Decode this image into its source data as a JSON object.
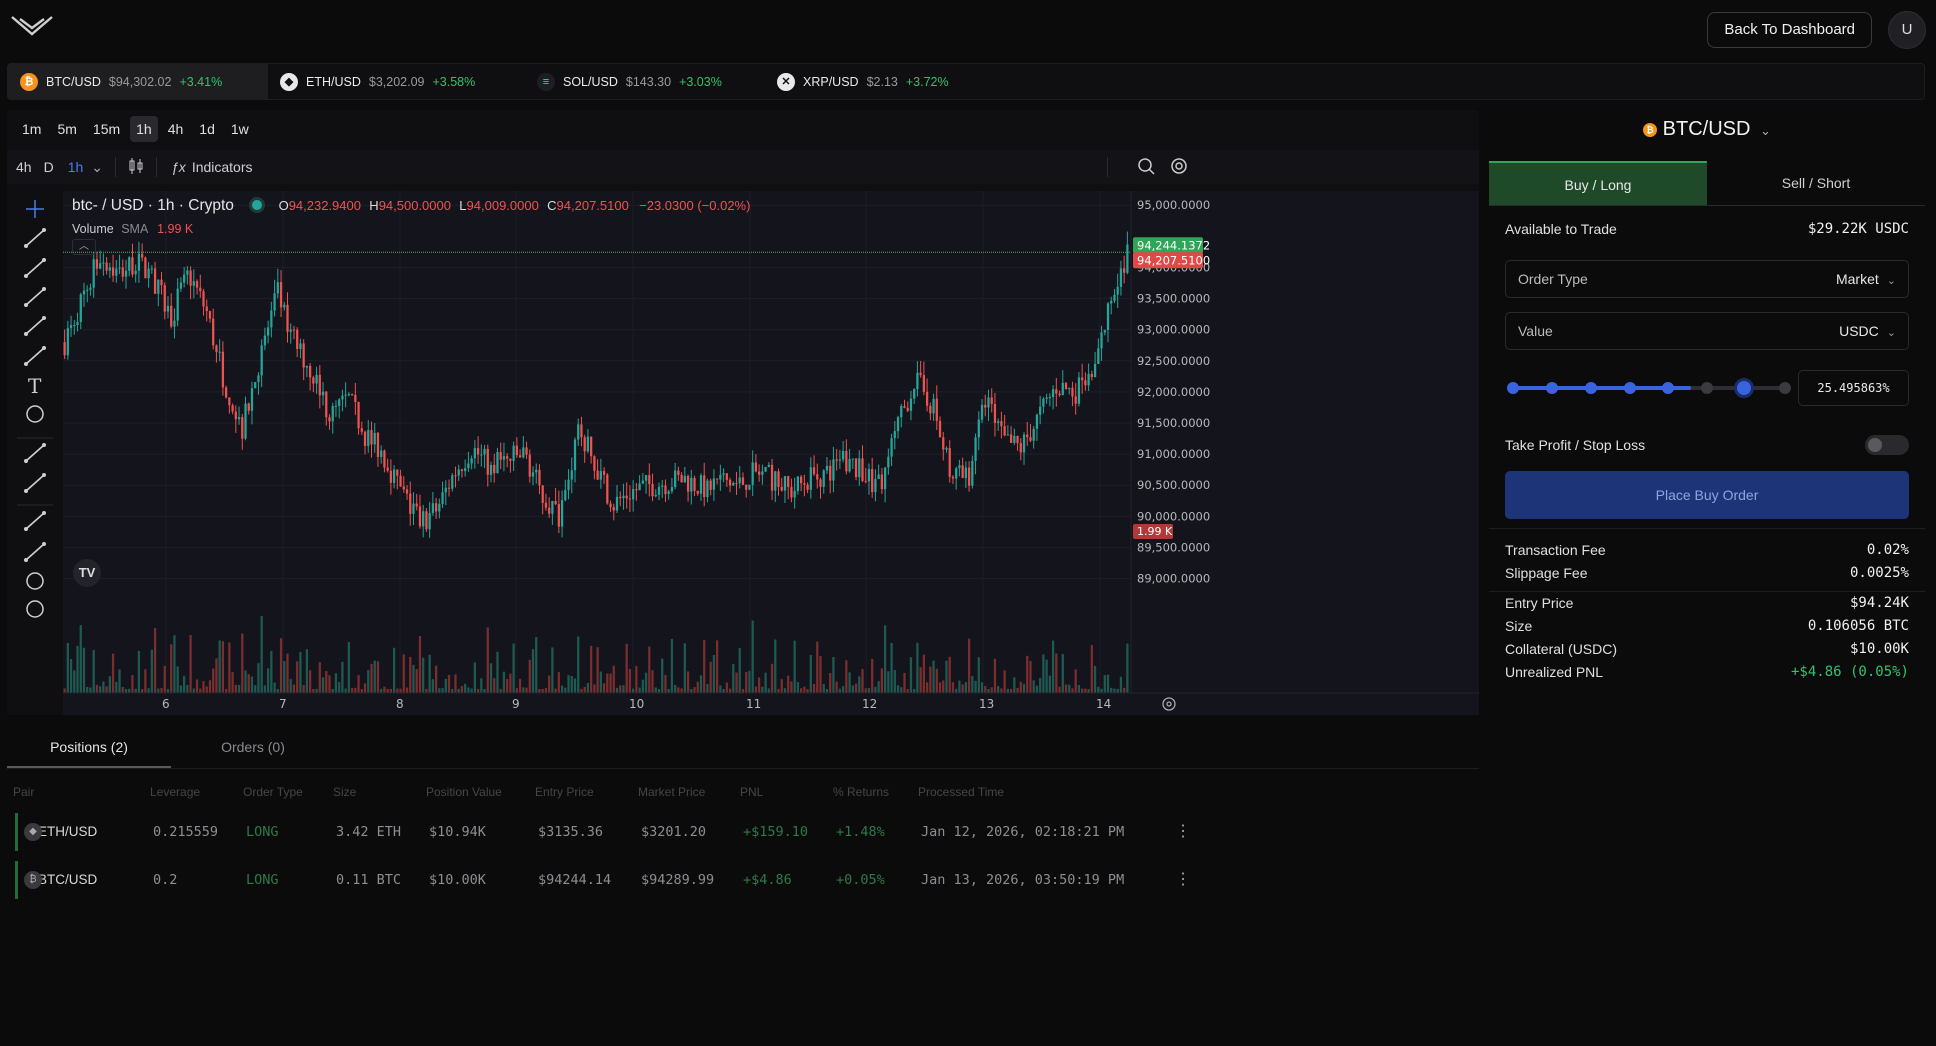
{
  "header": {
    "back_label": "Back To Dashboard",
    "avatar": "U"
  },
  "tickers": [
    {
      "symbol": "BTC/USD",
      "price": "$94,302.02",
      "change": "+3.41%",
      "icon": "bitcoin-icon",
      "color": "#f7931a",
      "glyph": "₿"
    },
    {
      "symbol": "ETH/USD",
      "price": "$3,202.09",
      "change": "+3.58%",
      "icon": "ethereum-icon",
      "color": "#ffffff",
      "glyph": "◆"
    },
    {
      "symbol": "SOL/USD",
      "price": "$143.30",
      "change": "+3.03%",
      "icon": "solana-icon",
      "color": "#14f195",
      "glyph": "≡"
    },
    {
      "symbol": "XRP/USD",
      "price": "$2.13",
      "change": "+3.72%",
      "icon": "xrp-icon",
      "color": "#ffffff",
      "glyph": "✕"
    }
  ],
  "timeframes": [
    "1m",
    "5m",
    "15m",
    "1h",
    "4h",
    "1d",
    "1w"
  ],
  "toolbar": {
    "quick_tf_1": "4h",
    "quick_tf_2": "D",
    "quick_tf_3": "1h",
    "indicators": "Indicators"
  },
  "legend": {
    "symbol": "btc- / USD · 1h · Crypto",
    "o_label": "O",
    "o": "94,232.9400",
    "h_label": "H",
    "h": "94,500.0000",
    "l_label": "L",
    "l": "94,009.0000",
    "c_label": "C",
    "c": "94,207.5100",
    "change": "−23.0300 (−0.02%)",
    "volume_label": "Volume",
    "sma_label": "SMA",
    "volume": "1.99 K"
  },
  "chart_data": {
    "type": "candlestick",
    "x_ticks": [
      "6",
      "7",
      "8",
      "9",
      "10",
      "11",
      "12",
      "13",
      "14"
    ],
    "y_ticks": [
      "95,000.0000",
      "94,000.0000",
      "93,500.0000",
      "93,000.0000",
      "92,500.0000",
      "92,000.0000",
      "91,500.0000",
      "91,000.0000",
      "90,500.0000",
      "90,000.0000",
      "89,500.0000",
      "89,000.0000"
    ],
    "ylim": [
      88800,
      95100
    ],
    "price_labels": {
      "last_green": "94,244.1372",
      "last_red": "94,207.5100",
      "volume": "1.99 K"
    },
    "close_path": [
      92800,
      93500,
      94200,
      93900,
      94100,
      93800,
      93200,
      93900,
      93300,
      92200,
      91400,
      92500,
      93600,
      92800,
      92300,
      91600,
      91900,
      91300,
      91000,
      90400,
      89900,
      90100,
      90700,
      91100,
      90800,
      90900,
      91000,
      90300,
      90000,
      91400,
      90800,
      90200,
      90400,
      90500,
      90550,
      90600,
      90450,
      90600,
      90500,
      90700,
      90600,
      90400,
      90600,
      90700,
      90900,
      90700,
      90500,
      91400,
      92200,
      91800,
      90700,
      90600,
      91900,
      91200,
      91100,
      91600,
      92100,
      92000,
      92200,
      93400,
      94244
    ]
  },
  "order": {
    "pair": "BTC/USD",
    "tab_buy": "Buy / Long",
    "tab_sell": "Sell / Short",
    "available_label": "Available to Trade",
    "available_value": "$29.22K USDC",
    "order_type_label": "Order Type",
    "order_type_value": "Market",
    "value_label": "Value",
    "value_unit": "USDC",
    "slider_pct": "25.495863%",
    "slider_fraction": 0.7,
    "tpsl_label": "Take Profit / Stop Loss",
    "place_label": "Place Buy Order",
    "fees": [
      {
        "label": "Transaction Fee",
        "value": "0.02%"
      },
      {
        "label": "Slippage Fee",
        "value": "0.0025%"
      }
    ],
    "summary": [
      {
        "label": "Entry Price",
        "value": "$94.24K"
      },
      {
        "label": "Size",
        "value": "0.106056 BTC"
      },
      {
        "label": "Collateral (USDC)",
        "value": "$10.00K"
      },
      {
        "label": "Unrealized PNL",
        "value": "+$4.86 (0.05%)"
      }
    ]
  },
  "positions": {
    "tab_positions": "Positions (2)",
    "tab_orders": "Orders (0)",
    "columns": [
      "Pair",
      "Leverage",
      "Order Type",
      "Size",
      "Position Value",
      "Entry Price",
      "Market Price",
      "PNL",
      "% Returns",
      "Processed Time"
    ],
    "rows": [
      {
        "pair": "ETH/USD",
        "leverage": "0.215559",
        "type": "LONG",
        "size": "3.42 ETH",
        "value": "$10.94K",
        "entry": "$3135.36",
        "market": "$3201.20",
        "pnl": "+$159.10",
        "returns": "+1.48%",
        "time": "Jan 12, 2026, 02:18:21 PM"
      },
      {
        "pair": "BTC/USD",
        "leverage": "0.2",
        "type": "LONG",
        "size": "0.11 BTC",
        "value": "$10.00K",
        "entry": "$94244.14",
        "market": "$94289.99",
        "pnl": "+$4.86",
        "returns": "+0.05%",
        "time": "Jan 13, 2026, 03:50:19 PM"
      }
    ]
  }
}
